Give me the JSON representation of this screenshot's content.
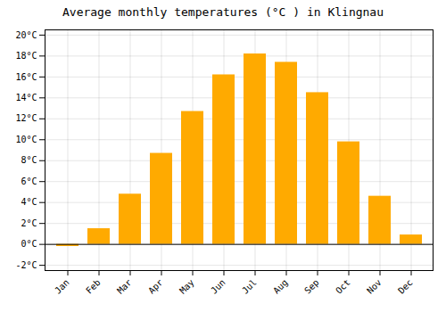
{
  "chart_data": {
    "type": "bar",
    "title": "Average monthly temperatures (°C ) in Klingnau",
    "categories": [
      "Jan",
      "Feb",
      "Mar",
      "Apr",
      "May",
      "Jun",
      "Jul",
      "Aug",
      "Sep",
      "Oct",
      "Nov",
      "Dec"
    ],
    "values": [
      -0.2,
      1.5,
      4.8,
      8.7,
      12.7,
      16.2,
      18.2,
      17.4,
      14.5,
      9.8,
      4.6,
      0.9
    ],
    "color": "#FFAA00",
    "ylim": [
      -2.5,
      20.5
    ],
    "yticks": [
      {
        "value": -2,
        "label": "-2°C"
      },
      {
        "value": 0,
        "label": "0°C"
      },
      {
        "value": 2,
        "label": "2°C"
      },
      {
        "value": 4,
        "label": "4°C"
      },
      {
        "value": 6,
        "label": "6°C"
      },
      {
        "value": 8,
        "label": "8°C"
      },
      {
        "value": 10,
        "label": "10°C"
      },
      {
        "value": 12,
        "label": "12°C"
      },
      {
        "value": 14,
        "label": "14°C"
      },
      {
        "value": 16,
        "label": "16°C"
      },
      {
        "value": 18,
        "label": "18°C"
      },
      {
        "value": 20,
        "label": "20°C"
      }
    ],
    "grid": true
  }
}
